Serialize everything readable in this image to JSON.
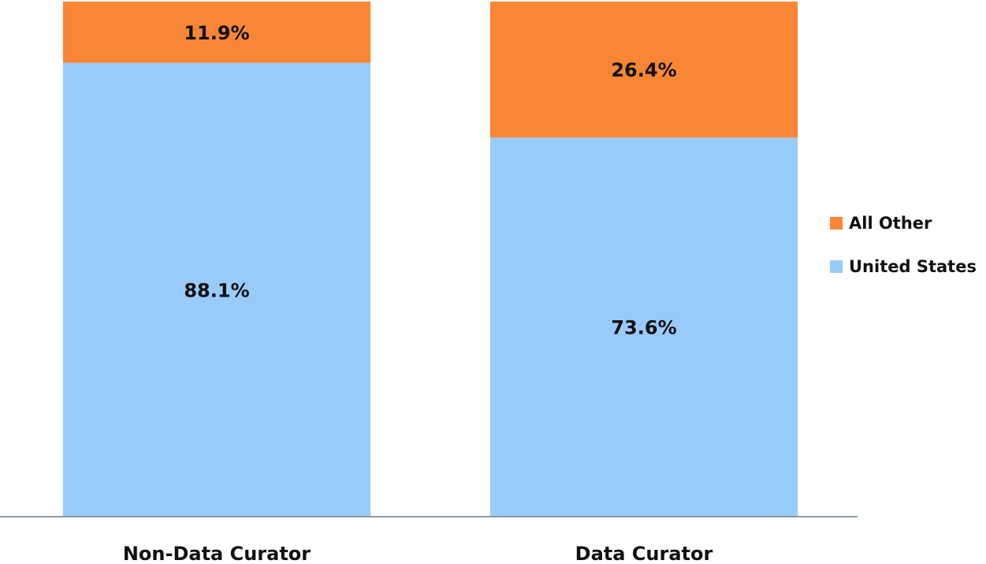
{
  "chart_data": {
    "type": "stacked_bar",
    "categories": [
      "Non-Data Curator",
      "Data Curator"
    ],
    "series": [
      {
        "name": "United States",
        "color": "#99cbfa",
        "values": [
          88.1,
          73.6
        ],
        "value_labels": [
          "88.1%",
          "73.6%"
        ]
      },
      {
        "name": "All Other",
        "color": "#f98634",
        "values": [
          11.9,
          26.4
        ],
        "value_labels": [
          "11.9%",
          "26.4%"
        ]
      }
    ],
    "ylim": [
      0,
      100
    ],
    "legend": "right"
  }
}
